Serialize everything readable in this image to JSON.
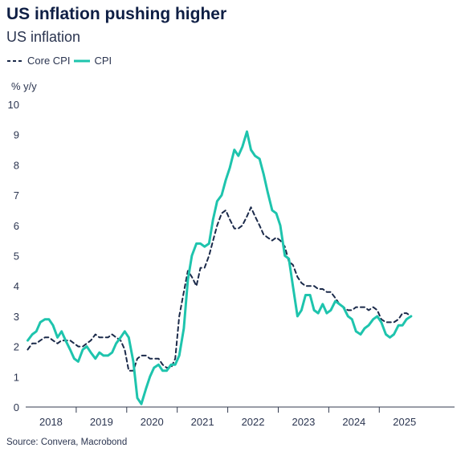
{
  "header": {
    "title": "US inflation pushing higher",
    "subtitle": "US inflation"
  },
  "legend": {
    "items": [
      {
        "label": "Core CPI",
        "style": "dashed",
        "color": "#1b2a4a"
      },
      {
        "label": "CPI",
        "style": "solid",
        "color": "#1ec4ad"
      }
    ]
  },
  "source": "Source: Convera, Macrobond",
  "chart_data": {
    "type": "line",
    "title": "US inflation pushing higher",
    "subtitle": "US inflation",
    "ylabel": "% y/y",
    "xlabel": "",
    "ylim": [
      0,
      10
    ],
    "yticks": [
      0,
      1,
      2,
      3,
      4,
      5,
      6,
      7,
      8,
      9,
      10
    ],
    "xlim": [
      2017.5,
      2025.99
    ],
    "year_labels": [
      "2018",
      "2019",
      "2020",
      "2021",
      "2022",
      "2023",
      "2024",
      "2025"
    ],
    "legend_position": "top-left",
    "grid": false,
    "series": [
      {
        "name": "Core CPI",
        "style": "dashed",
        "color": "#1b2a4a",
        "points": [
          [
            2017.54,
            1.9
          ],
          [
            2017.63,
            2.1
          ],
          [
            2017.71,
            2.1
          ],
          [
            2017.79,
            2.2
          ],
          [
            2017.88,
            2.3
          ],
          [
            2017.96,
            2.3
          ],
          [
            2018.04,
            2.2
          ],
          [
            2018.13,
            2.1
          ],
          [
            2018.21,
            2.2
          ],
          [
            2018.29,
            2.2
          ],
          [
            2018.38,
            2.2
          ],
          [
            2018.46,
            2.1
          ],
          [
            2018.54,
            2.0
          ],
          [
            2018.63,
            2.0
          ],
          [
            2018.71,
            2.1
          ],
          [
            2018.79,
            2.2
          ],
          [
            2018.88,
            2.4
          ],
          [
            2018.96,
            2.3
          ],
          [
            2019.04,
            2.3
          ],
          [
            2019.13,
            2.3
          ],
          [
            2019.21,
            2.4
          ],
          [
            2019.29,
            2.3
          ],
          [
            2019.38,
            2.2
          ],
          [
            2019.46,
            1.9
          ],
          [
            2019.54,
            1.2
          ],
          [
            2019.63,
            1.2
          ],
          [
            2019.71,
            1.6
          ],
          [
            2019.79,
            1.7
          ],
          [
            2019.88,
            1.7
          ],
          [
            2019.96,
            1.6
          ],
          [
            2020.04,
            1.6
          ],
          [
            2020.13,
            1.6
          ],
          [
            2020.21,
            1.4
          ],
          [
            2020.29,
            1.3
          ],
          [
            2020.38,
            1.3
          ],
          [
            2020.46,
            1.6
          ],
          [
            2020.54,
            3.0
          ],
          [
            2020.63,
            3.8
          ],
          [
            2020.71,
            4.5
          ],
          [
            2020.79,
            4.3
          ],
          [
            2020.88,
            4.0
          ],
          [
            2020.96,
            4.6
          ],
          [
            2021.04,
            4.6
          ],
          [
            2021.13,
            5.0
          ],
          [
            2021.21,
            5.5
          ],
          [
            2021.29,
            6.0
          ],
          [
            2021.38,
            6.4
          ],
          [
            2021.46,
            6.5
          ],
          [
            2021.54,
            6.2
          ],
          [
            2021.63,
            5.9
          ],
          [
            2021.71,
            5.9
          ],
          [
            2021.79,
            6.0
          ],
          [
            2021.88,
            6.3
          ],
          [
            2021.96,
            6.6
          ],
          [
            2022.04,
            6.3
          ],
          [
            2022.13,
            6.0
          ],
          [
            2022.21,
            5.7
          ],
          [
            2022.29,
            5.6
          ],
          [
            2022.38,
            5.5
          ],
          [
            2022.46,
            5.6
          ],
          [
            2022.54,
            5.5
          ],
          [
            2022.63,
            5.3
          ],
          [
            2022.71,
            4.8
          ],
          [
            2022.79,
            4.7
          ],
          [
            2022.88,
            4.3
          ],
          [
            2022.96,
            4.1
          ],
          [
            2023.04,
            4.0
          ],
          [
            2023.13,
            4.0
          ],
          [
            2023.21,
            4.0
          ],
          [
            2023.29,
            3.9
          ],
          [
            2023.38,
            3.9
          ],
          [
            2023.46,
            3.8
          ],
          [
            2023.54,
            3.8
          ],
          [
            2023.63,
            3.6
          ],
          [
            2023.71,
            3.4
          ],
          [
            2023.79,
            3.3
          ],
          [
            2023.88,
            3.2
          ],
          [
            2023.96,
            3.2
          ],
          [
            2024.04,
            3.3
          ],
          [
            2024.13,
            3.3
          ],
          [
            2024.21,
            3.3
          ],
          [
            2024.29,
            3.2
          ],
          [
            2024.38,
            3.3
          ],
          [
            2024.46,
            3.2
          ],
          [
            2024.54,
            2.9
          ],
          [
            2024.63,
            2.8
          ],
          [
            2024.71,
            2.8
          ],
          [
            2024.79,
            2.8
          ],
          [
            2024.88,
            2.9
          ],
          [
            2024.96,
            3.1
          ],
          [
            2025.04,
            3.1
          ],
          [
            2025.13,
            3.0
          ]
        ]
      },
      {
        "name": "CPI",
        "style": "solid",
        "color": "#1ec4ad",
        "points": [
          [
            2017.54,
            2.2
          ],
          [
            2017.63,
            2.4
          ],
          [
            2017.71,
            2.5
          ],
          [
            2017.79,
            2.8
          ],
          [
            2017.88,
            2.9
          ],
          [
            2017.96,
            2.9
          ],
          [
            2018.04,
            2.7
          ],
          [
            2018.13,
            2.3
          ],
          [
            2018.21,
            2.5
          ],
          [
            2018.29,
            2.2
          ],
          [
            2018.38,
            1.9
          ],
          [
            2018.46,
            1.6
          ],
          [
            2018.54,
            1.5
          ],
          [
            2018.63,
            1.9
          ],
          [
            2018.71,
            2.0
          ],
          [
            2018.79,
            1.8
          ],
          [
            2018.88,
            1.6
          ],
          [
            2018.96,
            1.8
          ],
          [
            2019.04,
            1.7
          ],
          [
            2019.13,
            1.7
          ],
          [
            2019.21,
            1.8
          ],
          [
            2019.29,
            2.1
          ],
          [
            2019.38,
            2.3
          ],
          [
            2019.46,
            2.5
          ],
          [
            2019.54,
            2.3
          ],
          [
            2019.63,
            1.5
          ],
          [
            2019.71,
            0.3
          ],
          [
            2019.79,
            0.1
          ],
          [
            2019.88,
            0.6
          ],
          [
            2019.96,
            1.0
          ],
          [
            2020.04,
            1.3
          ],
          [
            2020.13,
            1.4
          ],
          [
            2020.21,
            1.2
          ],
          [
            2020.29,
            1.2
          ],
          [
            2020.38,
            1.4
          ],
          [
            2020.46,
            1.4
          ],
          [
            2020.54,
            1.7
          ],
          [
            2020.63,
            2.6
          ],
          [
            2020.71,
            4.2
          ],
          [
            2020.79,
            5.0
          ],
          [
            2020.88,
            5.4
          ],
          [
            2020.96,
            5.4
          ],
          [
            2021.04,
            5.3
          ],
          [
            2021.13,
            5.4
          ],
          [
            2021.21,
            6.2
          ],
          [
            2021.29,
            6.8
          ],
          [
            2021.38,
            7.0
          ],
          [
            2021.46,
            7.5
          ],
          [
            2021.54,
            7.9
          ],
          [
            2021.63,
            8.5
          ],
          [
            2021.71,
            8.3
          ],
          [
            2021.79,
            8.6
          ],
          [
            2021.88,
            9.1
          ],
          [
            2021.96,
            8.5
          ],
          [
            2022.04,
            8.3
          ],
          [
            2022.13,
            8.2
          ],
          [
            2022.21,
            7.7
          ],
          [
            2022.29,
            7.1
          ],
          [
            2022.38,
            6.5
          ],
          [
            2022.46,
            6.4
          ],
          [
            2022.54,
            6.0
          ],
          [
            2022.63,
            5.0
          ],
          [
            2022.71,
            4.9
          ],
          [
            2022.79,
            4.0
          ],
          [
            2022.88,
            3.0
          ],
          [
            2022.96,
            3.2
          ],
          [
            2023.04,
            3.7
          ],
          [
            2023.13,
            3.7
          ],
          [
            2023.21,
            3.2
          ],
          [
            2023.29,
            3.1
          ],
          [
            2023.38,
            3.4
          ],
          [
            2023.46,
            3.1
          ],
          [
            2023.54,
            3.2
          ],
          [
            2023.63,
            3.5
          ],
          [
            2023.71,
            3.4
          ],
          [
            2023.79,
            3.3
          ],
          [
            2023.88,
            3.0
          ],
          [
            2023.96,
            2.9
          ],
          [
            2024.04,
            2.5
          ],
          [
            2024.13,
            2.4
          ],
          [
            2024.21,
            2.6
          ],
          [
            2024.29,
            2.7
          ],
          [
            2024.38,
            2.9
          ],
          [
            2024.46,
            3.0
          ],
          [
            2024.54,
            2.8
          ],
          [
            2024.63,
            2.4
          ],
          [
            2024.71,
            2.3
          ],
          [
            2024.79,
            2.4
          ],
          [
            2024.88,
            2.7
          ],
          [
            2024.96,
            2.7
          ],
          [
            2025.04,
            2.9
          ],
          [
            2025.13,
            3.0
          ]
        ]
      }
    ]
  }
}
